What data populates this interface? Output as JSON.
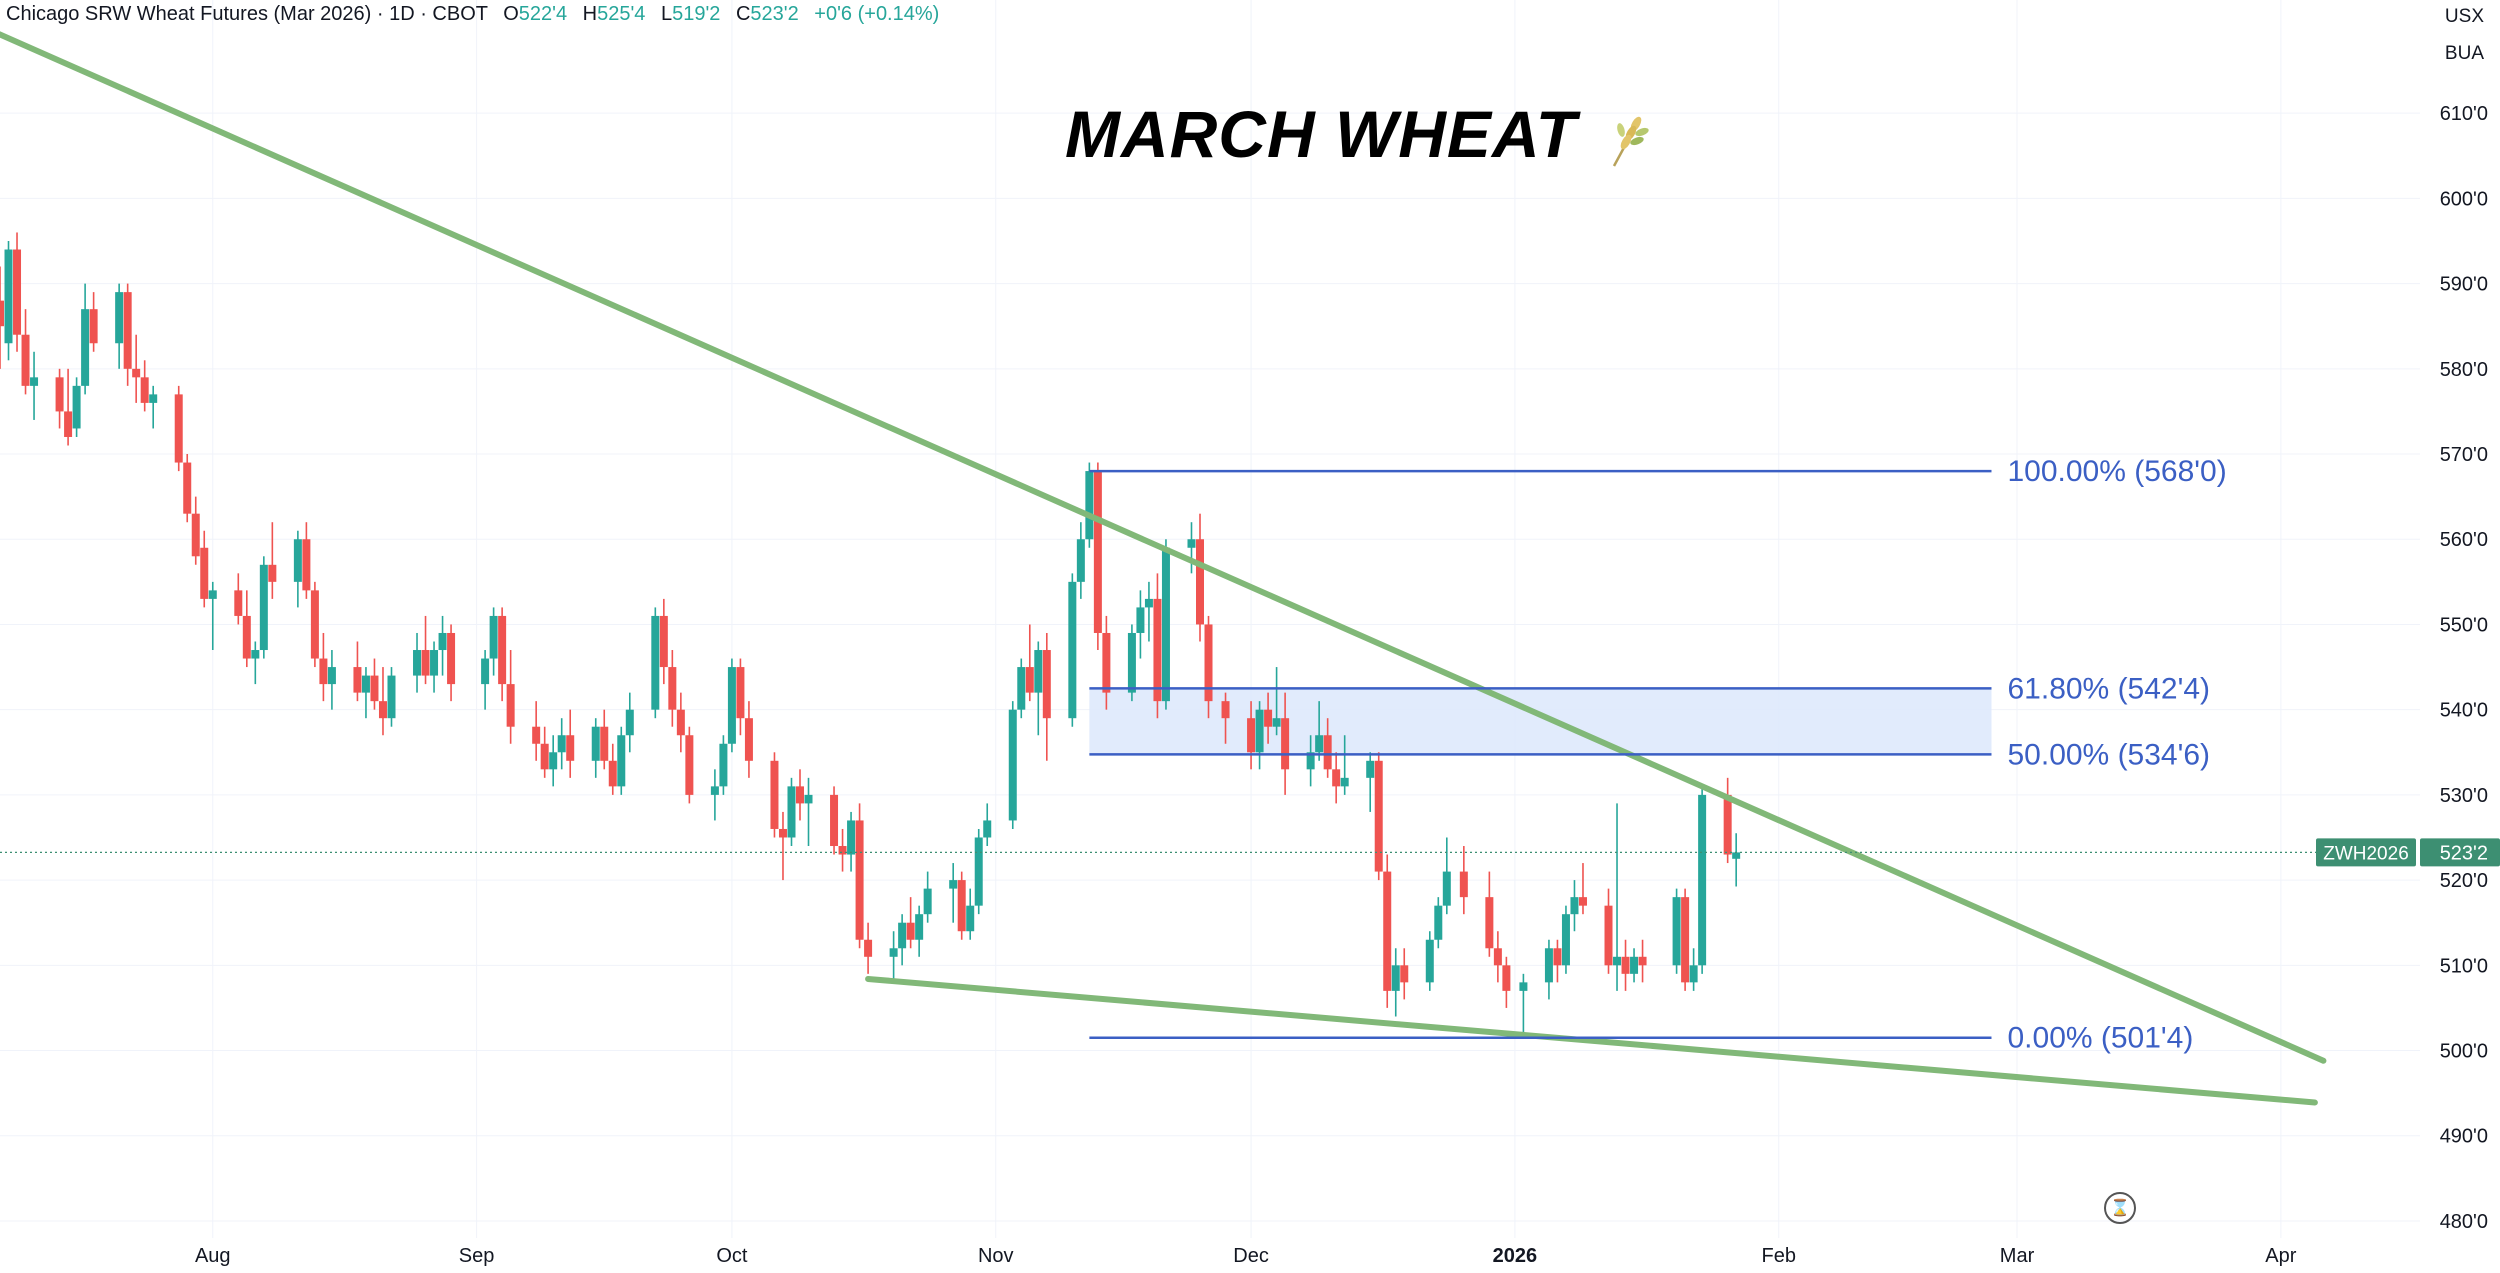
{
  "header": {
    "symbol_desc": "Chicago SRW Wheat Futures (Mar 2026) · 1D · CBOT",
    "o_label": "O",
    "o_value": "522'4",
    "h_label": "H",
    "h_value": "525'4",
    "l_label": "L",
    "l_value": "519'2",
    "c_label": "C",
    "c_value": "523'2",
    "change": "+0'6 (+0.14%)"
  },
  "top_right": {
    "currency": "USX",
    "unit": "BUA"
  },
  "title": "MARCH WHEAT",
  "title_icon": "wheat-icon",
  "current_price": {
    "ticker": "ZWH2026",
    "label": "523'2",
    "value": 523.25,
    "color": "#3d8f72"
  },
  "colors": {
    "up": "#26a69a",
    "down": "#ef5350",
    "trendline": "#81b878",
    "fib": "#3b5fc4",
    "zone": "#dce8fb"
  },
  "chart_data": {
    "type": "candlestick",
    "title": "MARCH WHEAT",
    "ylim": [
      478,
      618
    ],
    "y_ticks": [
      {
        "v": 480,
        "label": "480'0"
      },
      {
        "v": 490,
        "label": "490'0"
      },
      {
        "v": 500,
        "label": "500'0"
      },
      {
        "v": 510,
        "label": "510'0"
      },
      {
        "v": 520,
        "label": "520'0"
      },
      {
        "v": 530,
        "label": "530'0"
      },
      {
        "v": 540,
        "label": "540'0"
      },
      {
        "v": 550,
        "label": "550'0"
      },
      {
        "v": 560,
        "label": "560'0"
      },
      {
        "v": 570,
        "label": "570'0"
      },
      {
        "v": 580,
        "label": "580'0"
      },
      {
        "v": 590,
        "label": "590'0"
      },
      {
        "v": 600,
        "label": "600'0"
      },
      {
        "v": 610,
        "label": "610'0"
      }
    ],
    "x_ticks": [
      {
        "date": "2025-08-01",
        "label": "Aug",
        "bold": false
      },
      {
        "date": "2025-09-01",
        "label": "Sep",
        "bold": false
      },
      {
        "date": "2025-10-01",
        "label": "Oct",
        "bold": false
      },
      {
        "date": "2025-11-01",
        "label": "Nov",
        "bold": false
      },
      {
        "date": "2025-12-01",
        "label": "Dec",
        "bold": false
      },
      {
        "date": "2026-01-01",
        "label": "2026",
        "bold": true
      },
      {
        "date": "2026-02-01",
        "label": "Feb",
        "bold": false
      },
      {
        "date": "2026-03-01",
        "label": "Mar",
        "bold": false
      },
      {
        "date": "2026-04-01",
        "label": "Apr",
        "bold": false
      }
    ],
    "x_range": [
      "2025-07-07",
      "2026-04-15"
    ],
    "candles": [
      [
        "2025-07-07",
        588,
        592,
        580,
        585
      ],
      [
        "2025-07-08",
        583,
        595,
        581,
        594
      ],
      [
        "2025-07-09",
        594,
        596,
        582,
        584
      ],
      [
        "2025-07-10",
        584,
        587,
        577,
        578
      ],
      [
        "2025-07-11",
        578,
        582,
        574,
        579
      ],
      [
        "2025-07-14",
        579,
        580,
        573,
        575
      ],
      [
        "2025-07-15",
        575,
        580,
        571,
        572
      ],
      [
        "2025-07-16",
        573,
        579,
        572,
        578
      ],
      [
        "2025-07-17",
        578,
        590,
        577,
        587
      ],
      [
        "2025-07-18",
        587,
        589,
        582,
        583
      ],
      [
        "2025-07-21",
        583,
        590,
        580,
        589
      ],
      [
        "2025-07-22",
        589,
        590,
        578,
        580
      ],
      [
        "2025-07-23",
        580,
        584,
        576,
        579
      ],
      [
        "2025-07-24",
        579,
        581,
        575,
        576
      ],
      [
        "2025-07-25",
        576,
        578,
        573,
        577
      ],
      [
        "2025-07-28",
        577,
        578,
        568,
        569
      ],
      [
        "2025-07-29",
        569,
        570,
        562,
        563
      ],
      [
        "2025-07-30",
        563,
        565,
        557,
        558
      ],
      [
        "2025-07-31",
        559,
        561,
        552,
        553
      ],
      [
        "2025-08-01",
        553,
        555,
        547,
        554
      ],
      [
        "2025-08-04",
        554,
        556,
        550,
        551
      ],
      [
        "2025-08-05",
        551,
        554,
        545,
        546
      ],
      [
        "2025-08-06",
        546,
        548,
        543,
        547
      ],
      [
        "2025-08-07",
        547,
        558,
        546,
        557
      ],
      [
        "2025-08-08",
        557,
        562,
        553,
        555
      ],
      [
        "2025-08-11",
        555,
        561,
        552,
        560
      ],
      [
        "2025-08-12",
        560,
        562,
        553,
        554
      ],
      [
        "2025-08-13",
        554,
        555,
        545,
        546
      ],
      [
        "2025-08-14",
        546,
        549,
        541,
        543
      ],
      [
        "2025-08-15",
        543,
        547,
        540,
        545
      ],
      [
        "2025-08-18",
        545,
        548,
        541,
        542
      ],
      [
        "2025-08-19",
        542,
        545,
        539,
        544
      ],
      [
        "2025-08-20",
        544,
        546,
        540,
        541
      ],
      [
        "2025-08-21",
        541,
        545,
        537,
        539
      ],
      [
        "2025-08-22",
        539,
        545,
        538,
        544
      ],
      [
        "2025-08-25",
        544,
        549,
        542,
        547
      ],
      [
        "2025-08-26",
        547,
        551,
        543,
        544
      ],
      [
        "2025-08-27",
        544,
        548,
        542,
        547
      ],
      [
        "2025-08-28",
        547,
        551,
        544,
        549
      ],
      [
        "2025-08-29",
        549,
        550,
        541,
        543
      ],
      [
        "2025-09-02",
        543,
        547,
        540,
        546
      ],
      [
        "2025-09-03",
        546,
        552,
        544,
        551
      ],
      [
        "2025-09-04",
        551,
        552,
        541,
        543
      ],
      [
        "2025-09-05",
        543,
        547,
        536,
        538
      ],
      [
        "2025-09-08",
        538,
        541,
        534,
        536
      ],
      [
        "2025-09-09",
        536,
        538,
        532,
        533
      ],
      [
        "2025-09-10",
        533,
        537,
        531,
        535
      ],
      [
        "2025-09-11",
        535,
        539,
        533,
        537
      ],
      [
        "2025-09-12",
        537,
        540,
        532,
        534
      ],
      [
        "2025-09-15",
        534,
        539,
        532,
        538
      ],
      [
        "2025-09-16",
        538,
        540,
        533,
        534
      ],
      [
        "2025-09-17",
        534,
        536,
        530,
        531
      ],
      [
        "2025-09-18",
        531,
        538,
        530,
        537
      ],
      [
        "2025-09-19",
        537,
        542,
        535,
        540
      ],
      [
        "2025-09-22",
        540,
        552,
        539,
        551
      ],
      [
        "2025-09-23",
        551,
        553,
        543,
        545
      ],
      [
        "2025-09-24",
        545,
        547,
        538,
        540
      ],
      [
        "2025-09-25",
        540,
        542,
        535,
        537
      ],
      [
        "2025-09-26",
        537,
        538,
        529,
        530
      ],
      [
        "2025-09-29",
        530,
        533,
        527,
        531
      ],
      [
        "2025-09-30",
        531,
        537,
        530,
        536
      ],
      [
        "2025-10-01",
        536,
        546,
        535,
        545
      ],
      [
        "2025-10-02",
        545,
        546,
        537,
        539
      ],
      [
        "2025-10-03",
        539,
        541,
        532,
        534
      ],
      [
        "2025-10-06",
        534,
        535,
        525,
        526
      ],
      [
        "2025-10-07",
        526,
        528,
        520,
        525
      ],
      [
        "2025-10-08",
        525,
        532,
        524,
        531
      ],
      [
        "2025-10-09",
        531,
        533,
        527,
        529
      ],
      [
        "2025-10-10",
        529,
        532,
        524,
        530
      ],
      [
        "2025-10-13",
        530,
        531,
        523,
        524
      ],
      [
        "2025-10-14",
        524,
        526,
        521,
        523
      ],
      [
        "2025-10-15",
        523,
        528,
        521,
        527
      ],
      [
        "2025-10-16",
        527,
        529,
        512,
        513
      ],
      [
        "2025-10-17",
        513,
        515,
        509,
        511
      ],
      [
        "2025-10-20",
        511,
        514,
        508,
        512
      ],
      [
        "2025-10-21",
        512,
        516,
        510,
        515
      ],
      [
        "2025-10-22",
        515,
        518,
        512,
        513
      ],
      [
        "2025-10-23",
        513,
        517,
        511,
        516
      ],
      [
        "2025-10-24",
        516,
        521,
        515,
        519
      ],
      [
        "2025-10-27",
        519,
        522,
        515,
        520
      ],
      [
        "2025-10-28",
        520,
        521,
        513,
        514
      ],
      [
        "2025-10-29",
        514,
        519,
        513,
        517
      ],
      [
        "2025-10-30",
        517,
        526,
        516,
        525
      ],
      [
        "2025-10-31",
        525,
        529,
        524,
        527
      ],
      [
        "2025-11-03",
        527,
        541,
        526,
        540
      ],
      [
        "2025-11-04",
        540,
        546,
        539,
        545
      ],
      [
        "2025-11-05",
        545,
        550,
        541,
        542
      ],
      [
        "2025-11-06",
        542,
        548,
        537,
        547
      ],
      [
        "2025-11-07",
        547,
        549,
        534,
        539
      ],
      [
        "2025-11-10",
        539,
        556,
        538,
        555
      ],
      [
        "2025-11-11",
        555,
        562,
        553,
        560
      ],
      [
        "2025-11-12",
        560,
        569,
        559,
        568
      ],
      [
        "2025-11-13",
        568,
        569,
        547,
        549
      ],
      [
        "2025-11-14",
        549,
        551,
        540,
        542
      ],
      [
        "2025-11-17",
        542,
        550,
        541,
        549
      ],
      [
        "2025-11-18",
        549,
        554,
        546,
        552
      ],
      [
        "2025-11-19",
        552,
        555,
        548,
        553
      ],
      [
        "2025-11-20",
        553,
        556,
        539,
        541
      ],
      [
        "2025-11-21",
        541,
        560,
        540,
        559
      ],
      [
        "2025-11-24",
        559,
        562,
        556,
        560
      ],
      [
        "2025-11-25",
        560,
        563,
        548,
        550
      ],
      [
        "2025-11-26",
        550,
        551,
        539,
        541
      ],
      [
        "2025-11-28",
        541,
        542,
        536,
        539
      ],
      [
        "2025-12-01",
        539,
        541,
        533,
        535
      ],
      [
        "2025-12-02",
        535,
        541,
        533,
        540
      ],
      [
        "2025-12-03",
        540,
        542,
        536,
        538
      ],
      [
        "2025-12-04",
        538,
        545,
        537,
        539
      ],
      [
        "2025-12-05",
        539,
        542,
        530,
        533
      ],
      [
        "2025-12-08",
        533,
        537,
        531,
        535
      ],
      [
        "2025-12-09",
        535,
        541,
        534,
        537
      ],
      [
        "2025-12-10",
        537,
        539,
        532,
        533
      ],
      [
        "2025-12-11",
        533,
        535,
        529,
        531
      ],
      [
        "2025-12-12",
        531,
        537,
        530,
        532
      ],
      [
        "2025-12-15",
        532,
        535,
        528,
        534
      ],
      [
        "2025-12-16",
        534,
        535,
        520,
        521
      ],
      [
        "2025-12-17",
        521,
        523,
        505,
        507
      ],
      [
        "2025-12-18",
        507,
        512,
        504,
        510
      ],
      [
        "2025-12-19",
        510,
        512,
        506,
        508
      ],
      [
        "2025-12-22",
        508,
        514,
        507,
        513
      ],
      [
        "2025-12-23",
        513,
        518,
        512,
        517
      ],
      [
        "2025-12-24",
        517,
        525,
        516,
        521
      ],
      [
        "2025-12-26",
        521,
        524,
        516,
        518
      ],
      [
        "2025-12-29",
        518,
        521,
        511,
        512
      ],
      [
        "2025-12-30",
        512,
        514,
        508,
        510
      ],
      [
        "2025-12-31",
        510,
        511,
        505,
        507
      ],
      [
        "2026-01-02",
        507,
        509,
        501.5,
        508
      ],
      [
        "2026-01-05",
        508,
        513,
        506,
        512
      ],
      [
        "2026-01-06",
        512,
        513,
        508,
        510
      ],
      [
        "2026-01-07",
        510,
        517,
        509,
        516
      ],
      [
        "2026-01-08",
        516,
        520,
        514,
        518
      ],
      [
        "2026-01-09",
        518,
        522,
        516,
        517
      ],
      [
        "2026-01-12",
        517,
        519,
        509,
        510
      ],
      [
        "2026-01-13",
        510,
        529,
        507,
        511
      ],
      [
        "2026-01-14",
        511,
        513,
        507,
        509
      ],
      [
        "2026-01-15",
        509,
        512,
        508,
        511
      ],
      [
        "2026-01-16",
        511,
        513,
        508,
        510
      ],
      [
        "2026-01-20",
        510,
        519,
        509,
        518
      ],
      [
        "2026-01-21",
        518,
        519,
        507,
        508
      ],
      [
        "2026-01-22",
        508,
        512,
        507,
        510
      ],
      [
        "2026-01-23",
        510,
        531,
        509,
        530
      ],
      [
        "2026-01-26",
        530,
        532,
        522,
        523
      ],
      [
        "2026-01-27",
        522.5,
        525.5,
        519.25,
        523.25
      ]
    ],
    "trendlines": [
      {
        "name": "upper",
        "points": [
          [
            "2025-07-03",
            621
          ],
          [
            "2026-04-06",
            498.8
          ]
        ]
      },
      {
        "name": "lower",
        "points": [
          [
            "2025-10-17",
            508.4
          ],
          [
            "2026-04-05",
            493.9
          ]
        ]
      }
    ],
    "fib": {
      "start": "2025-11-12",
      "end": "2026-02-26",
      "zone": [
        534.75,
        542.5
      ],
      "levels": [
        {
          "value": 568,
          "label": "100.00% (568'0)"
        },
        {
          "value": 542.5,
          "label": "61.80% (542'4)"
        },
        {
          "value": 534.75,
          "label": "50.00% (534'6)"
        },
        {
          "value": 501.5,
          "label": "0.00% (501'4)"
        }
      ]
    }
  }
}
